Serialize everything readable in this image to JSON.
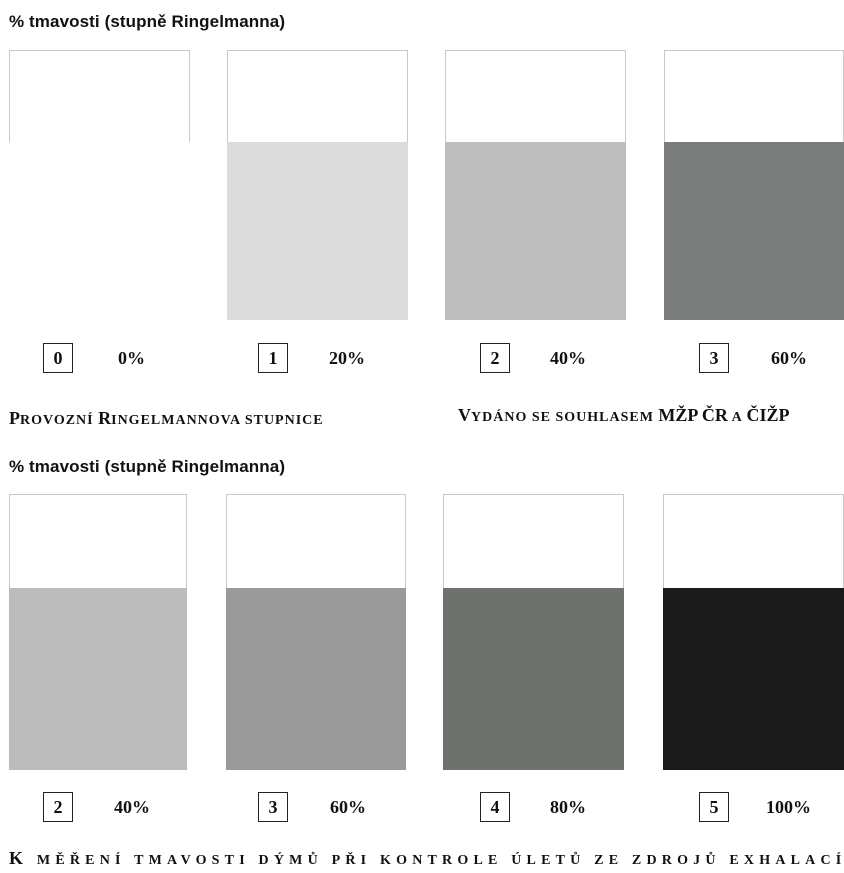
{
  "panel1": {
    "title": "% tmavosti (stupně Ringelmanna)",
    "cards": [
      {
        "grade": "0",
        "percent": "0%",
        "darkness": 0,
        "color": "#ffffff"
      },
      {
        "grade": "1",
        "percent": "20%",
        "darkness": 20,
        "color": "#dcdcdc"
      },
      {
        "grade": "2",
        "percent": "40%",
        "darkness": 40,
        "color": "#bdbdbd"
      },
      {
        "grade": "3",
        "percent": "60%",
        "darkness": 60,
        "color": "#7a7d7b"
      }
    ],
    "caption_left": {
      "p1": "P",
      "p2": "ROVOZNÍ ",
      "p3": "R",
      "p4": "INGELMANNOVA STUPNICE"
    },
    "caption_right": {
      "p1": "V",
      "p2": "YDÁNO SE SOUHLASEM ",
      "p3": "MŽP ČR",
      "p4": " A ",
      "p5": "ČIŽP"
    }
  },
  "panel2": {
    "title": "% tmavosti (stupně Ringelmanna)",
    "cards": [
      {
        "grade": "2",
        "percent": "40%",
        "darkness": 40,
        "color": "#bcbcbc"
      },
      {
        "grade": "3",
        "percent": "60%",
        "darkness": 60,
        "color": "#9a9a9a"
      },
      {
        "grade": "4",
        "percent": "80%",
        "darkness": 80,
        "color": "#6f716f"
      },
      {
        "grade": "5",
        "percent": "100%",
        "darkness": 100,
        "color": "#1a1a1a"
      }
    ]
  },
  "footer": {
    "p1": "K",
    "p2": " MĚŘENÍ TMAVOSTI DÝMŮ PŘI KONTROLE ÚLETŮ ZE ZDROJŮ EXHALACÍ"
  }
}
